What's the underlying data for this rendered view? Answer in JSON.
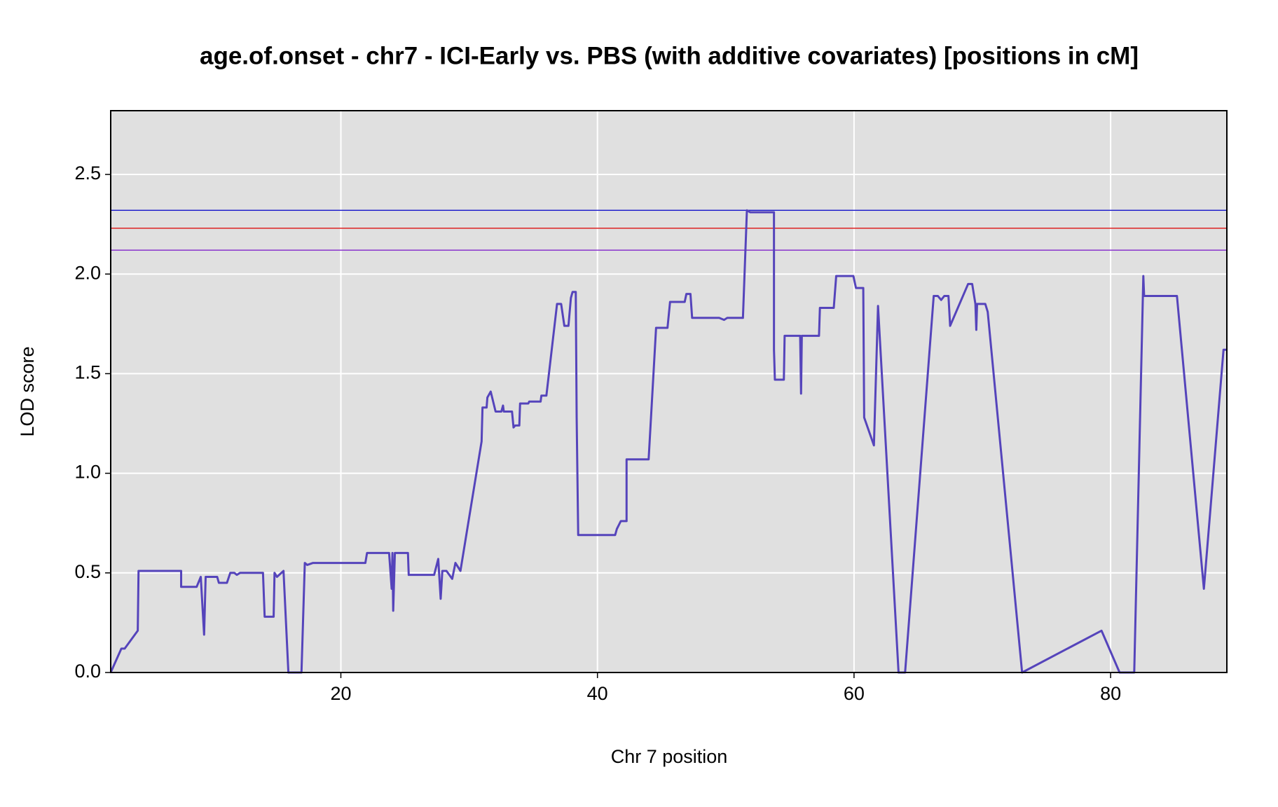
{
  "chart_data": {
    "type": "line",
    "title": "age.of.onset - chr7 - ICI-Early vs. PBS (with additive covariates) [positions in cM]",
    "x_label": "Chr 7 position",
    "y_label": "LOD score",
    "xlim": [
      2.06,
      89.06
    ],
    "ylim": [
      0,
      2.82
    ],
    "xticks": [
      20,
      40,
      60,
      80
    ],
    "yticks": [
      {
        "value": 0,
        "label": "0.0"
      },
      {
        "value": 0.5,
        "label": "0.5"
      },
      {
        "value": 1,
        "label": "1.0"
      },
      {
        "value": 1.5,
        "label": "1.5"
      },
      {
        "value": 2,
        "label": "2.0"
      },
      {
        "value": 2.5,
        "label": "2.5"
      }
    ],
    "grid": true,
    "thresholds": [
      {
        "value": 2.32,
        "color": "#2222cc"
      },
      {
        "value": 2.23,
        "color": "#dd2222"
      },
      {
        "value": 2.12,
        "color": "#8833cc"
      }
    ],
    "series": [
      {
        "color": "#5544bb",
        "x": [
          2.06,
          2.89,
          3.15,
          4.17,
          4.23,
          7.55,
          7.55,
          8.76,
          9.08,
          9.34,
          9.46,
          10.36,
          10.49,
          11.12,
          11.38,
          11.7,
          11.89,
          12.14,
          13.93,
          14.06,
          14.76,
          14.83,
          15.02,
          15.53,
          15.91,
          16.93,
          17.19,
          17.38,
          17.83,
          21.91,
          22.04,
          23.76,
          23.96,
          24.02,
          24.08,
          24.21,
          25.23,
          25.29,
          27.27,
          27.59,
          27.78,
          27.91,
          28.23,
          28.68,
          28.93,
          29.32,
          30.97,
          31.04,
          31.36,
          31.42,
          31.68,
          32.06,
          32.51,
          32.64,
          32.7,
          33.34,
          33.46,
          33.59,
          33.91,
          33.97,
          34.61,
          34.68,
          35.57,
          35.63,
          36.02,
          36.85,
          37.17,
          37.42,
          37.74,
          37.93,
          38.06,
          38.31,
          38.38,
          38.5,
          41.38,
          41.51,
          41.82,
          42.27,
          42.27,
          43.99,
          44.57,
          45.46,
          45.66,
          46.8,
          46.93,
          47.25,
          47.38,
          49.49,
          49.87,
          50.12,
          51.34,
          51.65,
          51.91,
          53.76,
          53.76,
          53.83,
          54.53,
          54.59,
          55.8,
          55.87,
          55.93,
          57.27,
          57.34,
          58.42,
          58.61,
          59.95,
          60.15,
          60.72,
          60.79,
          61.55,
          61.87,
          63.47,
          63.98,
          66.21,
          66.53,
          66.79,
          67.04,
          67.36,
          67.49,
          68.89,
          69.21,
          69.46,
          69.53,
          69.59,
          70.23,
          70.42,
          73.1,
          79.29,
          80.7,
          81.84,
          82.55,
          82.61,
          85.17,
          87.27,
          88.8,
          89.06
        ],
        "values": [
          0,
          0.12,
          0.12,
          0.21,
          0.51,
          0.51,
          0.43,
          0.43,
          0.48,
          0.19,
          0.48,
          0.48,
          0.45,
          0.45,
          0.5,
          0.5,
          0.49,
          0.5,
          0.5,
          0.28,
          0.28,
          0.5,
          0.48,
          0.51,
          0,
          0,
          0.55,
          0.54,
          0.55,
          0.55,
          0.6,
          0.6,
          0.42,
          0.6,
          0.31,
          0.6,
          0.6,
          0.49,
          0.49,
          0.57,
          0.37,
          0.51,
          0.51,
          0.47,
          0.55,
          0.51,
          1.16,
          1.33,
          1.33,
          1.38,
          1.41,
          1.31,
          1.31,
          1.34,
          1.31,
          1.31,
          1.23,
          1.24,
          1.24,
          1.35,
          1.35,
          1.36,
          1.36,
          1.39,
          1.39,
          1.85,
          1.85,
          1.74,
          1.74,
          1.88,
          1.91,
          1.91,
          1.28,
          0.69,
          0.69,
          0.72,
          0.76,
          0.76,
          1.07,
          1.07,
          1.73,
          1.73,
          1.86,
          1.86,
          1.9,
          1.9,
          1.78,
          1.78,
          1.77,
          1.78,
          1.78,
          2.32,
          2.31,
          2.31,
          1.62,
          1.47,
          1.47,
          1.69,
          1.69,
          1.4,
          1.69,
          1.69,
          1.83,
          1.83,
          1.99,
          1.99,
          1.93,
          1.93,
          1.28,
          1.14,
          1.84,
          0,
          0,
          1.89,
          1.89,
          1.87,
          1.89,
          1.89,
          1.74,
          1.95,
          1.95,
          1.85,
          1.72,
          1.85,
          1.85,
          1.81,
          0,
          0.21,
          0,
          0,
          1.99,
          1.89,
          1.89,
          0.42,
          1.62,
          1.62
        ]
      }
    ]
  }
}
